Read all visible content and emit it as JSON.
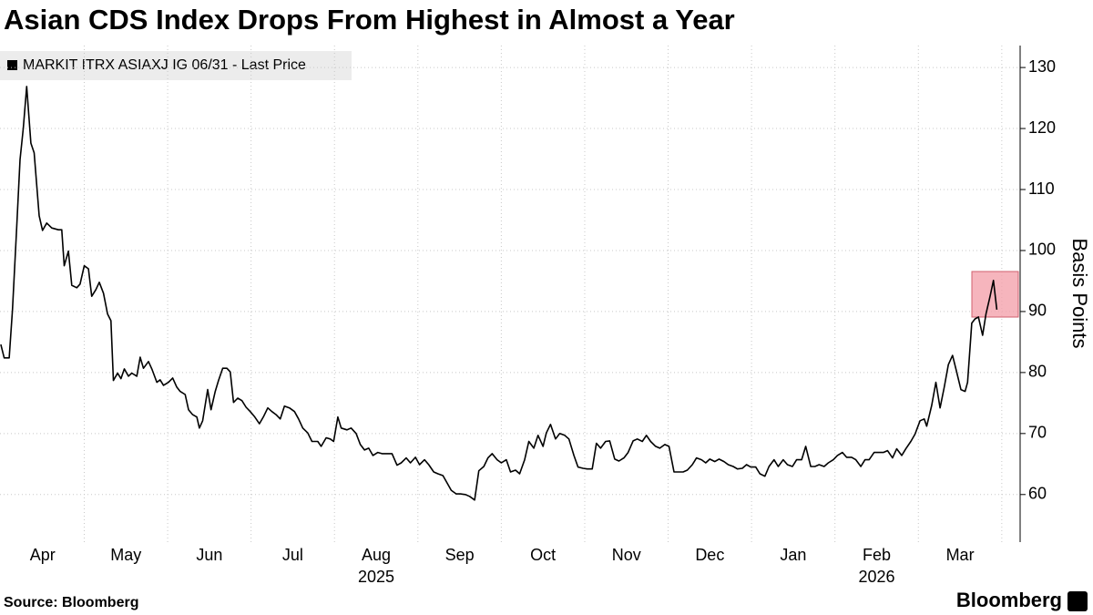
{
  "chart_data": {
    "type": "line",
    "title": "Asian CDS Index Drops From Highest in Almost a Year",
    "y_label": "Basis Points",
    "source": "Source: Bloomberg",
    "brand": "Bloomberg",
    "series": [
      {
        "name": "MARKIT ITRX ASIAXJ IG 06/31 - Last Price",
        "color": "#000000",
        "x": [
          0.0,
          0.04,
          0.1,
          0.14,
          0.19,
          0.23,
          0.27,
          0.31,
          0.36,
          0.4,
          0.46,
          0.5,
          0.55,
          0.61,
          0.69,
          0.73,
          0.76,
          0.81,
          0.85,
          0.91,
          0.95,
          1.0,
          1.05,
          1.09,
          1.14,
          1.18,
          1.23,
          1.28,
          1.32,
          1.35,
          1.4,
          1.44,
          1.48,
          1.53,
          1.57,
          1.63,
          1.67,
          1.71,
          1.77,
          1.81,
          1.87,
          1.91,
          1.95,
          2.01,
          2.06,
          2.11,
          2.15,
          2.21,
          2.25,
          2.3,
          2.35,
          2.38,
          2.42,
          2.48,
          2.52,
          2.57,
          2.61,
          2.66,
          2.71,
          2.75,
          2.79,
          2.84,
          2.89,
          2.94,
          2.99,
          3.04,
          3.1,
          3.15,
          3.2,
          3.25,
          3.3,
          3.35,
          3.4,
          3.46,
          3.52,
          3.57,
          3.62,
          3.68,
          3.73,
          3.8,
          3.84,
          3.9,
          3.95,
          3.99,
          4.04,
          4.08,
          4.15,
          4.2,
          4.26,
          4.31,
          4.36,
          4.41,
          4.46,
          4.52,
          4.57,
          4.63,
          4.69,
          4.75,
          4.8,
          4.86,
          4.91,
          4.97,
          5.02,
          5.08,
          5.13,
          5.19,
          5.24,
          5.3,
          5.35,
          5.4,
          5.46,
          5.51,
          5.57,
          5.62,
          5.68,
          5.73,
          5.79,
          5.84,
          5.89,
          5.95,
          6.0,
          6.06,
          6.11,
          6.17,
          6.22,
          6.28,
          6.33,
          6.39,
          6.44,
          6.5,
          6.54,
          6.59,
          6.65,
          6.7,
          6.76,
          6.81,
          6.87,
          6.92,
          6.98,
          7.03,
          7.09,
          7.14,
          7.19,
          7.25,
          7.3,
          7.36,
          7.41,
          7.47,
          7.52,
          7.58,
          7.63,
          7.69,
          7.74,
          7.79,
          7.85,
          7.9,
          7.96,
          8.01,
          8.07,
          8.12,
          8.18,
          8.23,
          8.29,
          8.34,
          8.4,
          8.45,
          8.5,
          8.56,
          8.61,
          8.67,
          8.72,
          8.78,
          8.83,
          8.89,
          8.94,
          8.99,
          9.05,
          9.1,
          9.16,
          9.21,
          9.27,
          9.32,
          9.38,
          9.43,
          9.49,
          9.54,
          9.6,
          9.65,
          9.71,
          9.76,
          9.81,
          9.87,
          9.92,
          9.98,
          10.03,
          10.09,
          10.14,
          10.2,
          10.25,
          10.31,
          10.36,
          10.41,
          10.47,
          10.52,
          10.58,
          10.63,
          10.69,
          10.74,
          10.8,
          10.85,
          10.91,
          10.96,
          11.02,
          11.07,
          11.1,
          11.16,
          11.21,
          11.26,
          11.31,
          11.36,
          11.41,
          11.45,
          11.51,
          11.56,
          11.59,
          11.64,
          11.68,
          11.72,
          11.77,
          11.81,
          11.86,
          11.9,
          11.94
        ],
        "values": [
          84.6,
          82.4,
          82.4,
          90.3,
          103.7,
          114.9,
          120.1,
          126.9,
          117.6,
          116.0,
          105.7,
          103.3,
          104.5,
          103.7,
          103.4,
          103.4,
          97.5,
          99.9,
          94.3,
          93.9,
          94.5,
          97.5,
          97.0,
          92.5,
          93.6,
          94.8,
          93.0,
          89.6,
          88.5,
          78.7,
          79.9,
          79.0,
          80.6,
          79.4,
          79.9,
          79.4,
          82.5,
          80.7,
          81.8,
          80.6,
          78.4,
          78.8,
          77.9,
          78.4,
          79.1,
          77.6,
          76.9,
          76.4,
          73.9,
          73.1,
          72.7,
          70.9,
          72.1,
          77.2,
          73.9,
          76.9,
          78.7,
          80.7,
          80.7,
          80.1,
          75.1,
          75.8,
          75.4,
          74.3,
          73.6,
          72.8,
          71.6,
          72.8,
          74.2,
          73.6,
          73.1,
          72.4,
          74.5,
          74.2,
          73.6,
          72.4,
          70.9,
          70.1,
          68.7,
          68.7,
          67.9,
          69.3,
          69.1,
          68.7,
          72.7,
          70.9,
          70.6,
          70.9,
          70.0,
          68.2,
          67.3,
          67.6,
          66.4,
          66.9,
          66.7,
          66.7,
          66.7,
          64.8,
          65.2,
          66.0,
          65.2,
          66.1,
          64.9,
          65.7,
          64.9,
          63.7,
          63.4,
          63.1,
          61.9,
          60.7,
          60.1,
          60.1,
          60.0,
          59.7,
          59.1,
          63.9,
          64.6,
          66.0,
          66.7,
          65.7,
          65.2,
          65.7,
          63.7,
          64.0,
          63.4,
          65.7,
          68.7,
          67.6,
          69.7,
          67.9,
          70.1,
          71.5,
          69.1,
          70.0,
          69.7,
          69.1,
          66.4,
          64.5,
          64.3,
          64.2,
          64.2,
          68.4,
          67.6,
          68.7,
          68.8,
          65.8,
          65.5,
          66.0,
          66.9,
          68.8,
          69.1,
          68.7,
          69.7,
          68.7,
          67.9,
          67.6,
          68.2,
          67.9,
          63.7,
          63.7,
          63.7,
          64.0,
          64.9,
          66.0,
          65.7,
          65.2,
          65.8,
          65.4,
          65.8,
          65.4,
          64.9,
          64.6,
          64.2,
          64.3,
          64.9,
          64.5,
          64.5,
          63.4,
          63.0,
          64.6,
          65.7,
          64.6,
          65.7,
          64.9,
          64.6,
          65.7,
          65.7,
          67.9,
          64.6,
          64.6,
          64.9,
          64.6,
          65.2,
          65.7,
          66.4,
          66.9,
          66.1,
          66.1,
          65.7,
          64.6,
          65.7,
          65.7,
          66.9,
          66.9,
          66.9,
          67.2,
          66.0,
          67.5,
          66.4,
          67.5,
          68.7,
          69.9,
          72.1,
          72.4,
          71.2,
          74.6,
          78.4,
          74.2,
          77.6,
          81.3,
          82.8,
          80.6,
          77.2,
          76.9,
          78.4,
          88.1,
          88.8,
          89.1,
          86.1,
          89.6,
          92.5,
          95.1,
          90.3
        ]
      }
    ],
    "xlim": [
      -0.01,
      12.22
    ],
    "xticks": [
      {
        "value": 0.5,
        "label": "Apr"
      },
      {
        "value": 1.5,
        "label": "May"
      },
      {
        "value": 2.5,
        "label": "Jun"
      },
      {
        "value": 3.5,
        "label": "Jul"
      },
      {
        "value": 4.5,
        "label": "Aug"
      },
      {
        "value": 5.5,
        "label": "Sep"
      },
      {
        "value": 6.5,
        "label": "Oct"
      },
      {
        "value": 7.5,
        "label": "Nov"
      },
      {
        "value": 8.5,
        "label": "Dec"
      },
      {
        "value": 9.5,
        "label": "Jan"
      },
      {
        "value": 10.5,
        "label": "Feb"
      },
      {
        "value": 11.5,
        "label": "Mar"
      }
    ],
    "year_labels": [
      {
        "value": 4.5,
        "label": "2025"
      },
      {
        "value": 10.5,
        "label": "2026"
      }
    ],
    "xgrid": [
      1,
      2,
      3,
      4,
      5,
      6,
      7,
      8,
      9,
      10,
      11,
      12
    ],
    "ylim": [
      52.2,
      133.6
    ],
    "yticks": [
      60,
      70,
      80,
      90,
      100,
      110,
      120,
      130
    ],
    "grid": true
  }
}
